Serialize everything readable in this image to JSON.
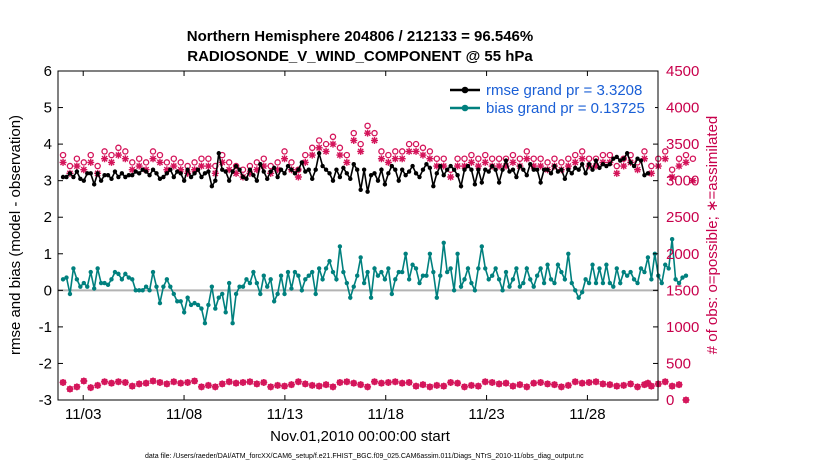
{
  "chart_data": {
    "type": "line",
    "title_line1": "Northern Hemisphere 204806 / 212133 = 96.546%",
    "title_line2": "RADIOSONDE_V_WIND_COMPONENT @ 55 hPa",
    "xlabel": "Nov.01,2010 00:00:00 start",
    "ylabel_left": "rmse and bias (model - observation)",
    "ylabel_right": "# of obs: o=possible; ∗=assimilated",
    "footnote": "data file: /Users/raeder/DAI/ATM_forcXX/CAM6_setup/f.e21.FHIST_BGC.f09_025.CAM6assim.011/Diags_NTrS_2010-11/obs_diag_output.nc",
    "x_range_days": [
      0.75,
      30.5
    ],
    "x_tick_days": [
      2,
      7,
      12,
      17,
      22,
      27
    ],
    "x_tick_labels": [
      "11/03",
      "11/08",
      "11/13",
      "11/18",
      "11/23",
      "11/28"
    ],
    "ylim_left": [
      -3,
      6
    ],
    "y_ticks_left": [
      "-3",
      "-2",
      "-1",
      "0",
      "1",
      "2",
      "3",
      "4",
      "5",
      "6"
    ],
    "ylim_right": [
      0,
      4500
    ],
    "y_ticks_right": [
      "0",
      "500",
      "1000",
      "1500",
      "2000",
      "2500",
      "3000",
      "3500",
      "4000",
      "4500"
    ],
    "legend": {
      "position": "top-right",
      "entries": [
        "rmse grand pr = 3.3208",
        "bias grand pr = 0.13725"
      ]
    },
    "colors": {
      "rmse": "#000000",
      "bias": "#00807e",
      "obs": "#d4145a",
      "zero_line": "#b3b3b3",
      "legend_text": "#1a5fd6"
    },
    "series": [
      {
        "name": "rmse grand pr = 3.3208",
        "values": [
          3.1,
          3.1,
          3.2,
          3.1,
          3.25,
          3.05,
          3.0,
          3.2,
          3.2,
          2.9,
          3.2,
          3.0,
          3.15,
          3.15,
          3.05,
          3.25,
          3.1,
          3.2,
          3.1,
          3.15,
          3.15,
          3.25,
          3.2,
          3.3,
          3.25,
          3.15,
          3.3,
          3.2,
          3.05,
          3.1,
          3.2,
          3.3,
          3.1,
          3.25,
          3.2,
          3.0,
          3.3,
          3.1,
          3.2,
          3.3,
          3.1,
          3.2,
          3.25,
          2.85,
          3.0,
          3.75,
          3.3,
          3.25,
          3.0,
          3.25,
          3.4,
          3.3,
          3.1,
          3.05,
          3.3,
          3.15,
          3.0,
          3.45,
          3.25,
          3.05,
          3.25,
          3.35,
          3.1,
          3.3,
          3.2,
          3.4,
          3.3,
          3.2,
          3.3,
          3.5,
          3.25,
          3.3,
          3.05,
          3.3,
          3.75,
          3.4,
          3.3,
          3.2,
          3.0,
          3.3,
          3.1,
          3.35,
          3.2,
          3.05,
          3.45,
          3.3,
          2.75,
          3.3,
          2.7,
          3.15,
          3.2,
          3.0,
          3.3,
          2.9,
          3.2,
          3.4,
          3.3,
          3.0,
          3.3,
          3.15,
          3.25,
          3.4,
          3.2,
          3.1,
          3.3,
          3.45,
          3.35,
          2.85,
          3.2,
          3.4,
          3.15,
          3.3,
          3.4,
          3.3,
          3.15,
          2.85,
          3.3,
          3.4,
          3.3,
          2.9,
          3.3,
          2.95,
          3.3,
          3.25,
          3.4,
          3.3,
          2.95,
          3.3,
          3.55,
          3.25,
          3.3,
          3.1,
          3.4,
          3.3,
          3.15,
          3.45,
          3.3,
          3.3,
          2.95,
          3.3,
          3.3,
          3.2,
          3.4,
          3.25,
          3.3,
          3.05,
          3.3,
          3.2,
          3.35,
          3.3,
          3.45,
          3.2,
          3.45,
          3.3,
          3.55,
          3.35,
          3.45,
          3.4,
          3.45,
          3.6,
          3.65,
          3.55,
          3.6,
          3.75,
          3.5,
          3.4,
          3.6,
          3.55,
          3.15,
          3.2
        ]
      },
      {
        "name": "bias grand pr = 0.13725",
        "values": [
          0.3,
          0.35,
          -0.1,
          0.6,
          0.3,
          0.1,
          0.2,
          0.1,
          0.5,
          0.05,
          0.6,
          0.2,
          0.2,
          0.15,
          0.3,
          0.5,
          0.45,
          0.3,
          0.45,
          0.35,
          0.3,
          0.0,
          0.0,
          0.0,
          0.1,
          0.0,
          0.5,
          0.1,
          -0.35,
          0.1,
          0.3,
          0.1,
          -0.1,
          -0.3,
          -0.3,
          -0.6,
          -0.2,
          -0.4,
          -0.35,
          -0.4,
          -0.5,
          -0.9,
          -0.4,
          0.1,
          -0.5,
          -0.2,
          -0.1,
          -0.6,
          0.2,
          -0.9,
          -0.1,
          0.1,
          0.1,
          0.3,
          0.2,
          0.5,
          0.2,
          -0.1,
          0.4,
          0.1,
          0.3,
          -0.3,
          -0.1,
          0.4,
          -0.1,
          0.5,
          0.05,
          0.5,
          0.4,
          0.0,
          0.3,
          0.4,
          0.5,
          -0.1,
          0.6,
          0.3,
          0.6,
          0.8,
          0.5,
          0.3,
          1.2,
          0.5,
          0.2,
          -0.2,
          0.1,
          0.4,
          0.9,
          0.2,
          0.5,
          -0.2,
          0.6,
          0.4,
          0.5,
          0.3,
          0.6,
          -0.1,
          0.3,
          0.5,
          0.5,
          1.0,
          0.3,
          0.7,
          0.6,
          0.2,
          0.4,
          0.4,
          1.0,
          0.5,
          -0.2,
          0.4,
          1.3,
          0.5,
          0.6,
          0.0,
          1.0,
          0.1,
          0.3,
          0.6,
          0.2,
          0.0,
          0.6,
          1.2,
          0.6,
          0.3,
          0.4,
          0.6,
          0.3,
          0.0,
          0.5,
          0.1,
          0.3,
          0.6,
          0.1,
          0.2,
          0.6,
          0.3,
          0.1,
          0.4,
          0.6,
          0.2,
          0.7,
          0.3,
          0.2,
          0.7,
          0.5,
          0.3,
          1.0,
          0.2,
          0.0,
          -0.2,
          -0.05,
          0.3,
          0.2,
          0.7,
          0.2,
          0.6,
          0.2,
          0.7,
          0.2,
          0.1,
          0.6,
          0.2,
          0.5,
          0.4,
          0.5,
          0.3,
          0.2,
          0.6,
          0.5,
          0.9,
          0.3,
          1.0,
          0.4,
          0.2,
          0.7,
          0.6,
          1.4,
          0.3,
          0.2,
          0.35,
          0.4
        ]
      },
      {
        "name": "obs possible",
        "values": [
          3350,
          3250,
          3200,
          3450,
          3300,
          3500,
          3250,
          3550,
          3350,
          3500,
          3200,
          3250,
          3400,
          3300,
          3350,
          3200,
          3450,
          3300,
          3400,
          3350,
          3250,
          3500,
          3300,
          3450,
          3250,
          3300,
          3400,
          3250,
          3350,
          3300,
          3250,
          3150,
          3300,
          3200,
          3250,
          3300,
          3200,
          3350,
          3250,
          3150,
          3300,
          3200,
          3300,
          3250,
          3200,
          3300,
          3350,
          3150,
          3250,
          3300,
          3200,
          3350,
          3150,
          3250,
          3200,
          3350,
          3250,
          3150,
          3300,
          3250,
          3200,
          3350,
          3250,
          3250,
          3400,
          3200,
          3250,
          3300,
          3150,
          3250,
          3350,
          3400,
          3450,
          3300,
          3550,
          3650,
          3500,
          3450,
          3600,
          3550,
          3450,
          3600,
          3350,
          3550,
          3650,
          3700,
          3500,
          3600,
          3750,
          3650,
          3650,
          3550,
          3400,
          3450,
          3350,
          3250,
          3400,
          3550,
          3400,
          3450,
          3500,
          3350,
          3500,
          3350,
          3450,
          3300,
          3400,
          3200,
          3300,
          3250,
          3300,
          3350,
          3150,
          3250,
          3300,
          3350,
          3300,
          3250,
          3350,
          3200,
          3300,
          3400,
          3350,
          3350,
          3300,
          3400,
          3300,
          3350,
          3300,
          3300,
          3350,
          3300,
          3300,
          3250,
          3400,
          3250,
          3300,
          3350,
          3300,
          3350,
          3250,
          3200,
          3300,
          3350,
          3250,
          3350,
          3300,
          3350,
          3350,
          3300,
          3400,
          3350,
          3300,
          3350,
          3300,
          3250,
          3350,
          3300,
          3350,
          3300,
          3200,
          3250,
          3300,
          3150,
          3350,
          3300,
          3250,
          3300,
          3400,
          3350,
          3200,
          3350,
          3300,
          3300,
          3400,
          3300,
          3150,
          3350,
          3300,
          3250,
          3350,
          3300,
          3300
        ]
      },
      {
        "name": "obs assimilated",
        "values": [
          3250,
          3150,
          3100,
          3350,
          3200,
          3400,
          3150,
          3450,
          3250,
          3400,
          3100,
          3150,
          3300,
          3200,
          3250,
          3100,
          3350,
          3200,
          3300,
          3250,
          3150,
          3400,
          3200,
          3350,
          3150,
          3200,
          3300,
          3150,
          3250,
          3200,
          3150,
          3050,
          3200,
          3100,
          3150,
          3200,
          3100,
          3250,
          3150,
          3050,
          3200,
          3100,
          3200,
          3150,
          3100,
          3200,
          3250,
          3050,
          3150,
          3200,
          3100,
          3250,
          3050,
          3150,
          3100,
          3250,
          3150,
          3050,
          3200,
          3150,
          3100,
          3250,
          3150,
          3150,
          3300,
          3100,
          3150,
          3200,
          3050,
          3150,
          3250,
          3300,
          3350,
          3200,
          3450,
          3550,
          3400,
          3350,
          3500,
          3450,
          3350,
          3500,
          3250,
          3450,
          3550,
          3600,
          3400,
          3500,
          3650,
          3550,
          3550,
          3450,
          3300,
          3350,
          3250,
          3150,
          3300,
          3450,
          3300,
          3350,
          3400,
          3250,
          3400,
          3250,
          3350,
          3200,
          3300,
          3100,
          3200,
          3150,
          3200,
          3250,
          3050,
          3150,
          3200,
          3250,
          3200,
          3150,
          3250,
          3100,
          3200,
          3300,
          3250,
          3250,
          3200,
          3300,
          3200,
          3250,
          3200,
          3200,
          3250,
          3200,
          3200,
          3150,
          3300,
          3150,
          3200,
          3250,
          3200,
          3250,
          3150,
          3100,
          3200,
          3250,
          3150,
          3250,
          3200,
          3250,
          3250,
          3200,
          3300,
          3250,
          3200,
          3250,
          3200,
          3150,
          3250,
          3200,
          3250,
          3200,
          3100,
          3150,
          3200,
          3050,
          3250,
          3200,
          3150,
          3200,
          3300,
          3250,
          3100,
          3250,
          3200,
          3200,
          3300,
          3200,
          3050,
          3250,
          3200,
          3150,
          3250,
          3200,
          3000
        ]
      },
      {
        "name": "obs (lower, possible and assimilated)",
        "values": [
          240,
          230,
          150,
          250,
          180,
          200,
          260,
          220,
          170,
          240,
          200,
          180,
          250,
          190,
          230,
          170,
          250,
          210,
          240,
          180,
          190,
          270,
          220,
          150,
          230,
          190,
          260,
          200,
          240,
          180,
          220,
          190,
          250,
          170,
          230,
          200,
          240,
          190,
          260,
          210,
          180,
          250,
          200,
          230,
          180,
          240,
          220,
          190,
          250,
          200,
          230,
          180,
          240,
          210,
          250,
          190,
          220,
          200,
          240,
          230,
          180,
          250,
          200,
          220,
          190,
          240,
          210,
          230,
          250,
          180,
          220,
          260,
          200,
          240,
          190,
          230,
          210,
          250,
          180,
          220,
          240,
          200,
          250,
          190,
          230,
          260,
          210,
          240,
          180,
          220,
          250,
          200,
          230,
          190,
          240,
          210,
          250,
          180,
          230,
          200,
          240,
          220,
          190,
          250,
          210,
          230,
          180,
          240,
          200,
          250,
          190,
          220,
          240,
          210,
          230,
          250,
          180,
          220,
          200,
          240,
          190,
          230,
          250,
          210,
          240,
          180,
          220,
          200,
          230,
          250,
          190,
          240,
          210,
          220,
          180,
          250,
          230,
          200,
          240,
          190,
          220,
          250,
          210,
          230,
          180,
          240,
          200,
          220,
          250,
          190,
          230,
          210,
          240,
          200,
          250,
          180,
          220,
          230,
          210,
          240,
          190,
          250,
          200,
          230,
          220,
          240,
          180,
          250,
          210,
          230,
          190,
          240,
          220,
          200,
          250,
          230,
          190,
          240,
          210,
          220,
          0
        ]
      }
    ]
  }
}
